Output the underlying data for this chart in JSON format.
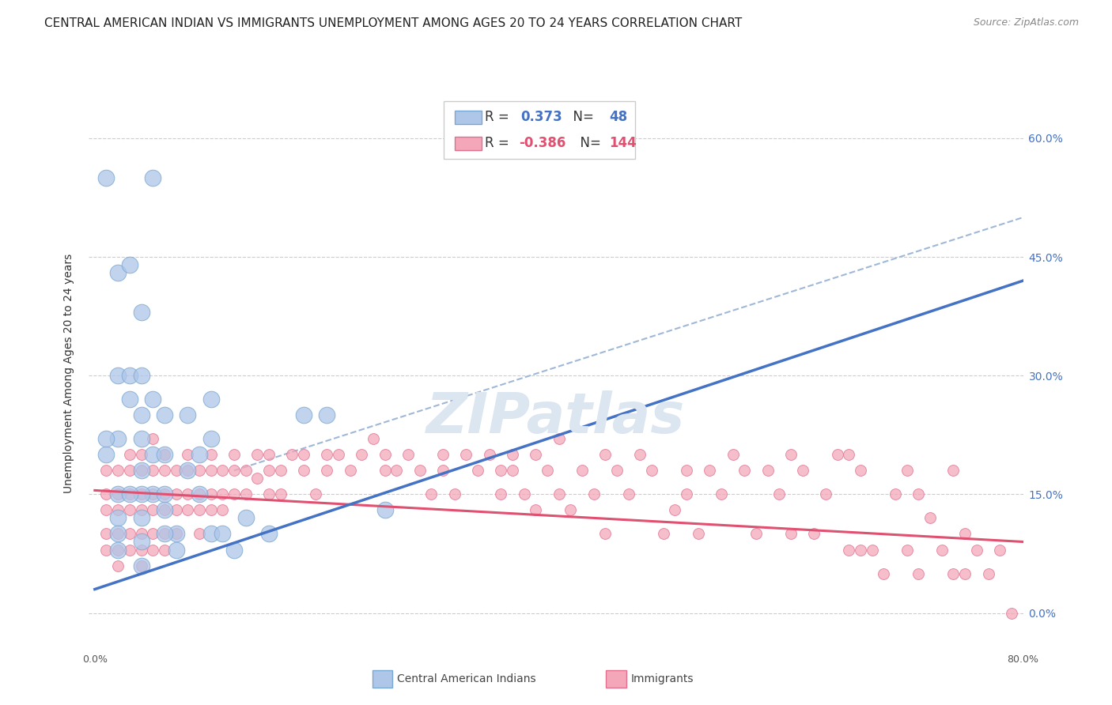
{
  "title": "CENTRAL AMERICAN INDIAN VS IMMIGRANTS UNEMPLOYMENT AMONG AGES 20 TO 24 YEARS CORRELATION CHART",
  "source": "Source: ZipAtlas.com",
  "ylabel": "Unemployment Among Ages 20 to 24 years",
  "watermark": "ZIPatlas",
  "blue_R": 0.373,
  "blue_N": 48,
  "pink_R": -0.386,
  "pink_N": 144,
  "blue_scatter": [
    [
      0.01,
      0.55
    ],
    [
      0.02,
      0.43
    ],
    [
      0.03,
      0.44
    ],
    [
      0.04,
      0.38
    ],
    [
      0.02,
      0.3
    ],
    [
      0.03,
      0.27
    ],
    [
      0.04,
      0.25
    ],
    [
      0.05,
      0.27
    ],
    [
      0.03,
      0.3
    ],
    [
      0.04,
      0.22
    ],
    [
      0.05,
      0.2
    ],
    [
      0.1,
      0.27
    ],
    [
      0.04,
      0.18
    ],
    [
      0.05,
      0.15
    ],
    [
      0.06,
      0.2
    ],
    [
      0.1,
      0.22
    ],
    [
      0.04,
      0.3
    ],
    [
      0.06,
      0.25
    ],
    [
      0.08,
      0.25
    ],
    [
      0.09,
      0.2
    ],
    [
      0.02,
      0.22
    ],
    [
      0.04,
      0.15
    ],
    [
      0.06,
      0.13
    ],
    [
      0.08,
      0.18
    ],
    [
      0.01,
      0.2
    ],
    [
      0.04,
      0.12
    ],
    [
      0.06,
      0.15
    ],
    [
      0.09,
      0.15
    ],
    [
      0.02,
      0.15
    ],
    [
      0.04,
      0.09
    ],
    [
      0.07,
      0.1
    ],
    [
      0.1,
      0.1
    ],
    [
      0.02,
      0.12
    ],
    [
      0.04,
      0.06
    ],
    [
      0.07,
      0.08
    ],
    [
      0.13,
      0.12
    ],
    [
      0.02,
      0.1
    ],
    [
      0.05,
      0.55
    ],
    [
      0.06,
      0.1
    ],
    [
      0.15,
      0.1
    ],
    [
      0.02,
      0.08
    ],
    [
      0.03,
      0.15
    ],
    [
      0.12,
      0.08
    ],
    [
      0.18,
      0.25
    ],
    [
      0.01,
      0.22
    ],
    [
      0.11,
      0.1
    ],
    [
      0.2,
      0.25
    ],
    [
      0.25,
      0.13
    ]
  ],
  "pink_scatter": [
    [
      0.01,
      0.18
    ],
    [
      0.01,
      0.15
    ],
    [
      0.01,
      0.13
    ],
    [
      0.01,
      0.1
    ],
    [
      0.01,
      0.08
    ],
    [
      0.02,
      0.18
    ],
    [
      0.02,
      0.15
    ],
    [
      0.02,
      0.13
    ],
    [
      0.02,
      0.1
    ],
    [
      0.02,
      0.08
    ],
    [
      0.02,
      0.06
    ],
    [
      0.03,
      0.2
    ],
    [
      0.03,
      0.18
    ],
    [
      0.03,
      0.15
    ],
    [
      0.03,
      0.13
    ],
    [
      0.03,
      0.1
    ],
    [
      0.03,
      0.08
    ],
    [
      0.04,
      0.2
    ],
    [
      0.04,
      0.18
    ],
    [
      0.04,
      0.15
    ],
    [
      0.04,
      0.13
    ],
    [
      0.04,
      0.1
    ],
    [
      0.04,
      0.08
    ],
    [
      0.04,
      0.06
    ],
    [
      0.05,
      0.22
    ],
    [
      0.05,
      0.18
    ],
    [
      0.05,
      0.15
    ],
    [
      0.05,
      0.13
    ],
    [
      0.05,
      0.1
    ],
    [
      0.05,
      0.08
    ],
    [
      0.06,
      0.2
    ],
    [
      0.06,
      0.18
    ],
    [
      0.06,
      0.15
    ],
    [
      0.06,
      0.13
    ],
    [
      0.06,
      0.1
    ],
    [
      0.06,
      0.08
    ],
    [
      0.07,
      0.18
    ],
    [
      0.07,
      0.15
    ],
    [
      0.07,
      0.13
    ],
    [
      0.07,
      0.1
    ],
    [
      0.08,
      0.2
    ],
    [
      0.08,
      0.18
    ],
    [
      0.08,
      0.15
    ],
    [
      0.08,
      0.13
    ],
    [
      0.09,
      0.18
    ],
    [
      0.09,
      0.15
    ],
    [
      0.09,
      0.13
    ],
    [
      0.09,
      0.1
    ],
    [
      0.1,
      0.2
    ],
    [
      0.1,
      0.18
    ],
    [
      0.1,
      0.15
    ],
    [
      0.1,
      0.13
    ],
    [
      0.11,
      0.18
    ],
    [
      0.11,
      0.15
    ],
    [
      0.11,
      0.13
    ],
    [
      0.12,
      0.2
    ],
    [
      0.12,
      0.18
    ],
    [
      0.12,
      0.15
    ],
    [
      0.13,
      0.18
    ],
    [
      0.13,
      0.15
    ],
    [
      0.14,
      0.2
    ],
    [
      0.14,
      0.17
    ],
    [
      0.15,
      0.2
    ],
    [
      0.15,
      0.18
    ],
    [
      0.15,
      0.15
    ],
    [
      0.16,
      0.18
    ],
    [
      0.16,
      0.15
    ],
    [
      0.17,
      0.2
    ],
    [
      0.18,
      0.2
    ],
    [
      0.18,
      0.18
    ],
    [
      0.19,
      0.15
    ],
    [
      0.2,
      0.2
    ],
    [
      0.2,
      0.18
    ],
    [
      0.21,
      0.2
    ],
    [
      0.22,
      0.18
    ],
    [
      0.23,
      0.2
    ],
    [
      0.24,
      0.22
    ],
    [
      0.25,
      0.18
    ],
    [
      0.25,
      0.2
    ],
    [
      0.26,
      0.18
    ],
    [
      0.27,
      0.2
    ],
    [
      0.28,
      0.18
    ],
    [
      0.29,
      0.15
    ],
    [
      0.3,
      0.2
    ],
    [
      0.3,
      0.18
    ],
    [
      0.31,
      0.15
    ],
    [
      0.32,
      0.2
    ],
    [
      0.33,
      0.18
    ],
    [
      0.34,
      0.2
    ],
    [
      0.35,
      0.18
    ],
    [
      0.35,
      0.15
    ],
    [
      0.36,
      0.2
    ],
    [
      0.36,
      0.18
    ],
    [
      0.37,
      0.15
    ],
    [
      0.38,
      0.2
    ],
    [
      0.38,
      0.13
    ],
    [
      0.39,
      0.18
    ],
    [
      0.4,
      0.15
    ],
    [
      0.4,
      0.22
    ],
    [
      0.41,
      0.13
    ],
    [
      0.42,
      0.18
    ],
    [
      0.43,
      0.15
    ],
    [
      0.44,
      0.2
    ],
    [
      0.44,
      0.1
    ],
    [
      0.45,
      0.18
    ],
    [
      0.46,
      0.15
    ],
    [
      0.47,
      0.2
    ],
    [
      0.48,
      0.18
    ],
    [
      0.49,
      0.1
    ],
    [
      0.5,
      0.13
    ],
    [
      0.51,
      0.18
    ],
    [
      0.51,
      0.15
    ],
    [
      0.52,
      0.1
    ],
    [
      0.53,
      0.18
    ],
    [
      0.54,
      0.15
    ],
    [
      0.55,
      0.2
    ],
    [
      0.56,
      0.18
    ],
    [
      0.57,
      0.1
    ],
    [
      0.58,
      0.18
    ],
    [
      0.59,
      0.15
    ],
    [
      0.6,
      0.2
    ],
    [
      0.6,
      0.1
    ],
    [
      0.61,
      0.18
    ],
    [
      0.62,
      0.1
    ],
    [
      0.63,
      0.15
    ],
    [
      0.64,
      0.2
    ],
    [
      0.65,
      0.2
    ],
    [
      0.65,
      0.08
    ],
    [
      0.66,
      0.18
    ],
    [
      0.66,
      0.08
    ],
    [
      0.67,
      0.08
    ],
    [
      0.68,
      0.05
    ],
    [
      0.69,
      0.15
    ],
    [
      0.7,
      0.18
    ],
    [
      0.7,
      0.08
    ],
    [
      0.71,
      0.15
    ],
    [
      0.71,
      0.05
    ],
    [
      0.72,
      0.12
    ],
    [
      0.73,
      0.08
    ],
    [
      0.74,
      0.18
    ],
    [
      0.74,
      0.05
    ],
    [
      0.75,
      0.1
    ],
    [
      0.75,
      0.05
    ],
    [
      0.76,
      0.08
    ],
    [
      0.77,
      0.05
    ],
    [
      0.78,
      0.08
    ],
    [
      0.79,
      0.0
    ]
  ],
  "blue_line_x": [
    0.0,
    0.8
  ],
  "blue_line_y": [
    0.03,
    0.42
  ],
  "pink_line_x": [
    0.0,
    0.8
  ],
  "pink_line_y": [
    0.155,
    0.09
  ],
  "gray_line_x": [
    0.12,
    0.8
  ],
  "gray_line_y": [
    0.18,
    0.5
  ],
  "xlim": [
    -0.005,
    0.8
  ],
  "ylim": [
    -0.045,
    0.65
  ],
  "xticks": [
    0.0,
    0.1,
    0.2,
    0.3,
    0.4,
    0.5,
    0.6,
    0.7,
    0.8
  ],
  "yticks_right": [
    0.0,
    0.15,
    0.3,
    0.45,
    0.6
  ],
  "ytick_labels_right": [
    "0.0%",
    "15.0%",
    "30.0%",
    "45.0%",
    "60.0%"
  ],
  "xtick_labels": [
    "0.0%",
    "",
    "",
    "",
    "",
    "",
    "",
    "",
    "80.0%"
  ],
  "background_color": "#ffffff",
  "scatter_blue_color": "#aec6e8",
  "scatter_blue_edge": "#7aa8d4",
  "scatter_pink_color": "#f4a7b9",
  "scatter_pink_edge": "#e07090",
  "blue_line_color": "#4472c4",
  "pink_line_color": "#e05070",
  "gray_line_color": "#a0b8d8",
  "grid_color": "#cccccc",
  "title_color": "#222222",
  "watermark_color": "#dce6f0",
  "title_fontsize": 11,
  "source_fontsize": 9,
  "legend_border_color": "#cccccc",
  "legend_text_color": "#333333",
  "right_tick_color": "#4472c4"
}
